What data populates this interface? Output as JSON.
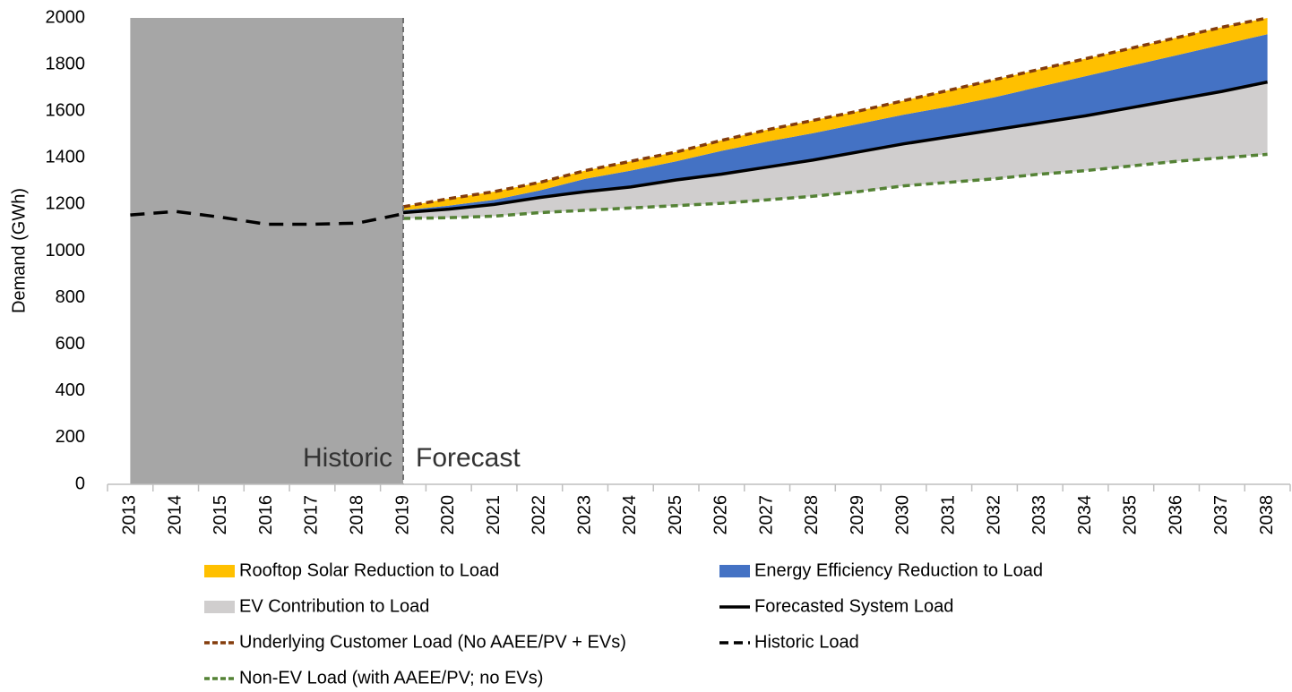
{
  "chart_data": {
    "type": "area",
    "y_label": "Demand (GWh)",
    "annotations": [
      "Historic",
      "Forecast"
    ],
    "shaded_span": [
      "2013",
      "2019"
    ],
    "shade_color": "#a6a6a6",
    "stacked_on": "Non-EV Load (with AAEE/PV; no EVs)",
    "categories": [
      "2013",
      "2014",
      "2015",
      "2016",
      "2017",
      "2018",
      "2019",
      "2020",
      "2021",
      "2022",
      "2023",
      "2024",
      "2025",
      "2026",
      "2027",
      "2028",
      "2029",
      "2030",
      "2031",
      "2032",
      "2033",
      "2034",
      "2035",
      "2036",
      "2037",
      "2038"
    ],
    "ylim": [
      0,
      2000
    ],
    "yticks": [
      0,
      200,
      400,
      600,
      800,
      1000,
      1200,
      1400,
      1600,
      1800,
      2000
    ],
    "series": [
      {
        "name": "Rooftop Solar Reduction to Load",
        "color": "#ffc000",
        "kind": "area",
        "values": [
          null,
          null,
          null,
          null,
          null,
          null,
          15,
          30,
          35,
          35,
          35,
          40,
          40,
          45,
          50,
          55,
          55,
          60,
          70,
          75,
          75,
          75,
          75,
          75,
          75,
          70
        ]
      },
      {
        "name": "Energy Efficiency Reduction to Load",
        "color": "#4472c4",
        "kind": "area",
        "values": [
          null,
          null,
          null,
          null,
          null,
          null,
          10,
          15,
          20,
          30,
          55,
          70,
          80,
          100,
          110,
          115,
          120,
          125,
          130,
          140,
          155,
          170,
          180,
          190,
          200,
          205
        ]
      },
      {
        "name": "EV Contribution to Load",
        "color": "#d0cece",
        "kind": "area",
        "values": [
          null,
          null,
          null,
          null,
          null,
          null,
          25,
          37,
          50,
          65,
          80,
          90,
          110,
          125,
          140,
          155,
          170,
          180,
          195,
          210,
          220,
          235,
          250,
          265,
          285,
          310
        ]
      },
      {
        "name": "Forecasted System Load",
        "color": "#000000",
        "kind": "line",
        "dash": "none",
        "values": [
          null,
          null,
          null,
          null,
          null,
          null,
          1165,
          1180,
          1200,
          1230,
          1255,
          1275,
          1305,
          1330,
          1360,
          1390,
          1425,
          1460,
          1490,
          1520,
          1550,
          1580,
          1615,
          1650,
          1685,
          1725
        ]
      },
      {
        "name": "Underlying Customer Load (No AAEE/PV + EVs)",
        "color": "#843c0c",
        "kind": "line",
        "dash": "8 5",
        "values": [
          null,
          null,
          null,
          null,
          null,
          null,
          1190,
          1225,
          1255,
          1295,
          1345,
          1385,
          1425,
          1475,
          1520,
          1560,
          1600,
          1645,
          1690,
          1735,
          1780,
          1825,
          1870,
          1915,
          1960,
          2000
        ]
      },
      {
        "name": "Historic Load",
        "color": "#000000",
        "kind": "line",
        "dash": "16 10",
        "values": [
          1155,
          1170,
          1145,
          1115,
          1115,
          1120,
          1160,
          null,
          null,
          null,
          null,
          null,
          null,
          null,
          null,
          null,
          null,
          null,
          null,
          null,
          null,
          null,
          null,
          null,
          null,
          null
        ]
      },
      {
        "name": "Non-EV Load (with AAEE/PV; no EVs)",
        "color": "#548235",
        "kind": "line",
        "dash": "8 5",
        "values": [
          null,
          null,
          null,
          null,
          null,
          null,
          1140,
          1143,
          1150,
          1165,
          1175,
          1185,
          1195,
          1205,
          1220,
          1235,
          1255,
          1280,
          1295,
          1310,
          1330,
          1345,
          1365,
          1385,
          1400,
          1415
        ]
      }
    ]
  }
}
